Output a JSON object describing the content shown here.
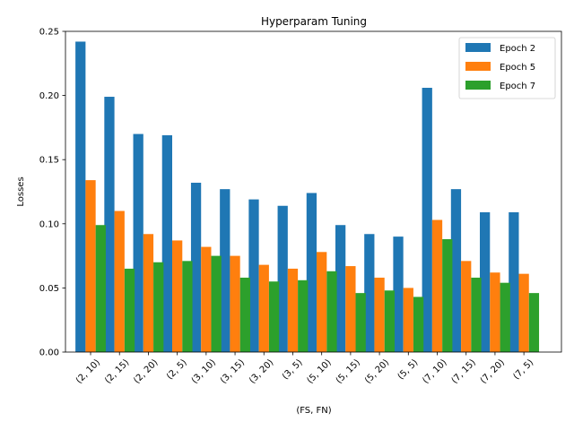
{
  "chart_data": {
    "type": "bar",
    "title": "Hyperparam Tuning",
    "xlabel": "(FS, FN)",
    "ylabel": "Losses",
    "ylim": [
      0,
      0.25
    ],
    "yticks": [
      "0.00",
      "0.05",
      "0.10",
      "0.15",
      "0.20",
      "0.25"
    ],
    "grid": false,
    "legend_position": "top-right",
    "categories": [
      "(2, 10)",
      "(2, 15)",
      "(2, 20)",
      "(2, 5)",
      "(3, 10)",
      "(3, 15)",
      "(3, 20)",
      "(3, 5)",
      "(5, 10)",
      "(5, 15)",
      "(5, 20)",
      "(5, 5)",
      "(7, 10)",
      "(7, 15)",
      "(7, 20)",
      "(7, 5)"
    ],
    "series": [
      {
        "name": "Epoch 2",
        "color": "#1f77b4",
        "values": [
          0.242,
          0.199,
          0.17,
          0.169,
          0.132,
          0.127,
          0.119,
          0.114,
          0.124,
          0.099,
          0.092,
          0.09,
          0.206,
          0.127,
          0.109,
          0.109
        ]
      },
      {
        "name": "Epoch 5",
        "color": "#ff7f0e",
        "values": [
          0.134,
          0.11,
          0.092,
          0.087,
          0.082,
          0.075,
          0.068,
          0.065,
          0.078,
          0.067,
          0.058,
          0.05,
          0.103,
          0.071,
          0.062,
          0.061
        ]
      },
      {
        "name": "Epoch 7",
        "color": "#2ca02c",
        "values": [
          0.099,
          0.065,
          0.07,
          0.071,
          0.075,
          0.058,
          0.055,
          0.056,
          0.063,
          0.046,
          0.048,
          0.043,
          0.088,
          0.058,
          0.054,
          0.046
        ]
      }
    ]
  }
}
